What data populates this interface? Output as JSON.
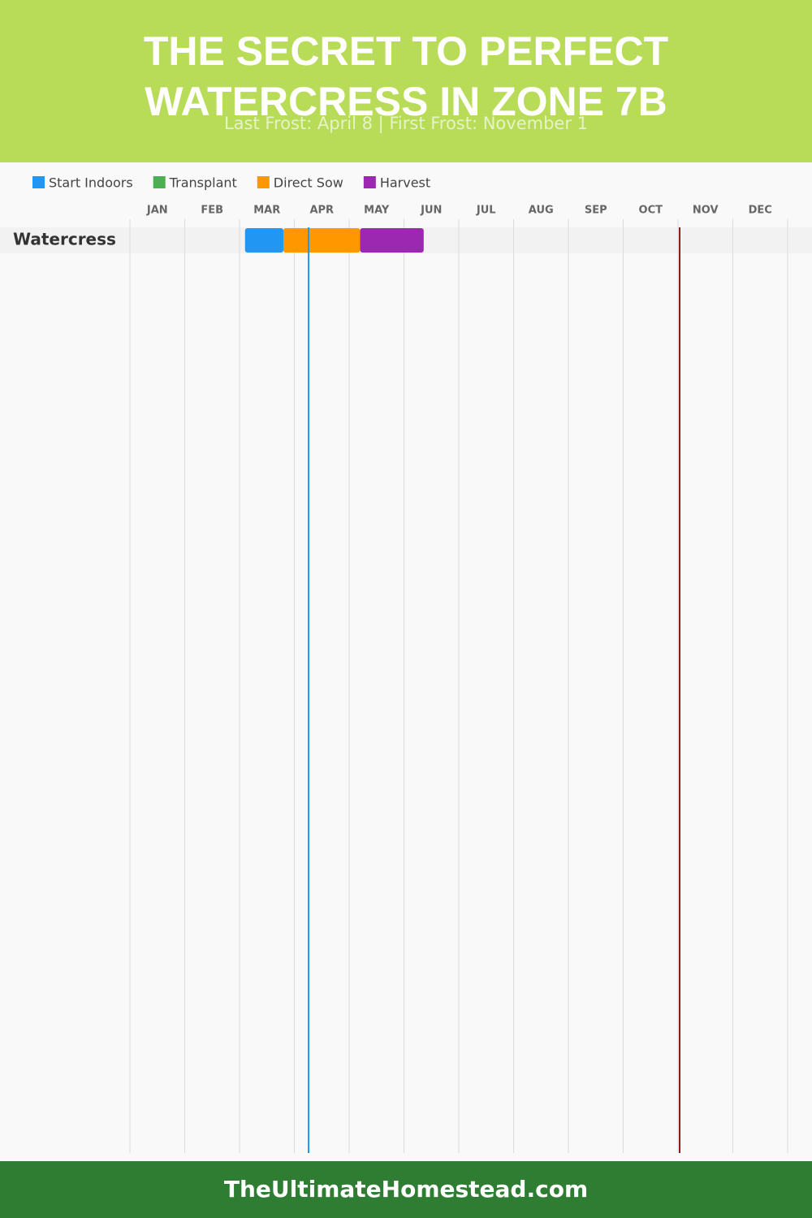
{
  "chart_data": {
    "type": "gantt",
    "title": "THE SECRET TO PERFECT WATERCRESS IN ZONE 7B",
    "subtitle": "Last Frost: April 8 | First Frost: November 1",
    "categories": [
      "JAN",
      "FEB",
      "MAR",
      "APR",
      "MAY",
      "JUN",
      "JUL",
      "AUG",
      "SEP",
      "OCT",
      "NOV",
      "DEC"
    ],
    "xlim": [
      0,
      12
    ],
    "rows": [
      "Watercress"
    ],
    "series": [
      {
        "name": "Start Indoors",
        "color": "#2196f3",
        "start": [
          2.1
        ],
        "end": [
          2.8
        ]
      },
      {
        "name": "Transplant",
        "color": "#4caf50",
        "start": [
          null
        ],
        "end": [
          null
        ]
      },
      {
        "name": "Direct Sow",
        "color": "#ff9800",
        "start": [
          2.8
        ],
        "end": [
          4.2
        ]
      },
      {
        "name": "Harvest",
        "color": "#9c27b0",
        "start": [
          4.2
        ],
        "end": [
          5.36
        ]
      }
    ],
    "markers": [
      {
        "value": 3.26,
        "color": "#2196f3"
      },
      {
        "value": 10.03,
        "color": "#8b1a1a"
      }
    ],
    "footer": "TheUltimateHomestead.com"
  }
}
